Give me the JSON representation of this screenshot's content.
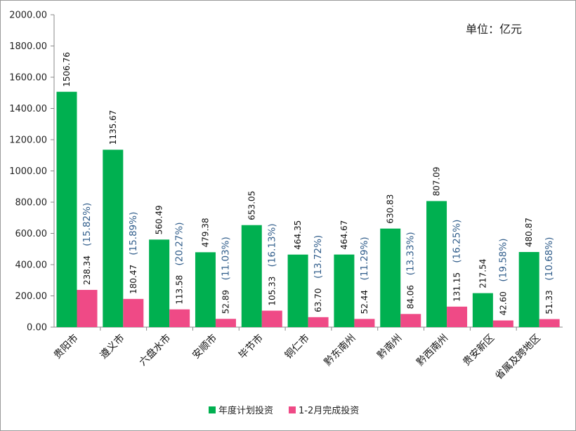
{
  "chart_data": {
    "type": "bar",
    "unit_note": "单位：亿元",
    "categories": [
      "贵阳市",
      "遵义市",
      "六盘水市",
      "安顺市",
      "毕节市",
      "铜仁市",
      "黔东南州",
      "黔南州",
      "黔西南州",
      "贵安新区",
      "省属及跨地区"
    ],
    "series": [
      {
        "name": "年度计划投资",
        "color": "#00b050",
        "values": [
          1506.76,
          1135.67,
          560.49,
          479.38,
          653.05,
          464.35,
          464.67,
          630.83,
          807.09,
          217.54,
          480.87
        ],
        "labels": [
          "1506.76",
          "1135.67",
          "560.49",
          "479.38",
          "653.05",
          "464.35",
          "464.67",
          "630.83",
          "807.09",
          "217.54",
          "480.87"
        ]
      },
      {
        "name": "1-2月完成投资",
        "color": "#ef4a86",
        "values": [
          238.34,
          180.47,
          113.58,
          52.89,
          105.33,
          63.7,
          52.44,
          84.06,
          131.15,
          42.6,
          51.33
        ],
        "labels": [
          "238.34",
          "180.47",
          "113.58",
          "52.89",
          "105.33",
          "63.70",
          "52.44",
          "84.06",
          "131.15",
          "42.60",
          "51.33"
        ]
      }
    ],
    "percent_labels": [
      "(15.82%)",
      "(15.89%)",
      "(20.27%)",
      "(11.03%)",
      "(16.13%)",
      "(13.72%)",
      "(11.29%)",
      "(13.33%)",
      "(16.25%)",
      "(19.58%)",
      "(10.68%)"
    ],
    "ylim": [
      0,
      2000
    ],
    "yticks": [
      "0.00",
      "200.00",
      "400.00",
      "600.00",
      "800.00",
      "1000.00",
      "1200.00",
      "1400.00",
      "1600.00",
      "1800.00",
      "2000.00"
    ],
    "grid": false,
    "legend_position": "bottom"
  }
}
